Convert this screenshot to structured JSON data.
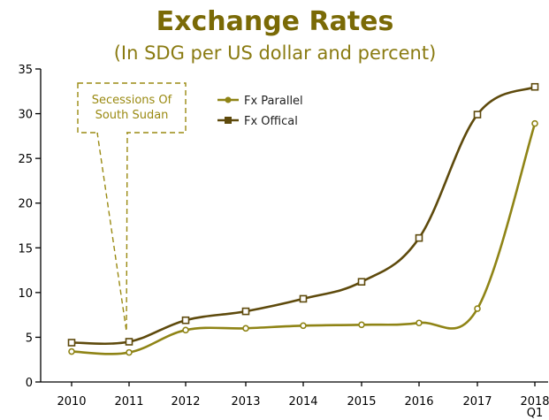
{
  "chart_data": {
    "type": "line",
    "title": "Exchange Rates",
    "subtitle": "(In SDG per US dollar and percent)",
    "categories": [
      "2010",
      "2011",
      "2012",
      "2013",
      "2014",
      "2015",
      "2016",
      "2017",
      "2018 Q1"
    ],
    "category_lines": [
      [
        "2010"
      ],
      [
        "2011"
      ],
      [
        "2012"
      ],
      [
        "2013"
      ],
      [
        "2014"
      ],
      [
        "2015"
      ],
      [
        "2016"
      ],
      [
        "2017"
      ],
      [
        "2018",
        "Q1"
      ]
    ],
    "ylim": [
      0,
      35
    ],
    "yticks": [
      0,
      5,
      10,
      15,
      20,
      25,
      30,
      35
    ],
    "legend_position": "top-center",
    "grid": false,
    "series": [
      {
        "name": "Fx Parallel",
        "marker": "circle",
        "color": "#8f8416",
        "values": [
          3.4,
          3.3,
          5.8,
          6.0,
          6.3,
          6.4,
          6.6,
          8.2,
          28.9
        ]
      },
      {
        "name": "Fx Offical",
        "marker": "square",
        "color": "#5e4a0c",
        "values": [
          4.4,
          4.5,
          6.9,
          7.9,
          9.3,
          11.2,
          16.1,
          29.9,
          33.0
        ]
      }
    ],
    "annotation": {
      "lines": [
        "Secessions Of",
        "South Sudan"
      ],
      "points_to": "2011",
      "color": "#9a8a12"
    }
  }
}
